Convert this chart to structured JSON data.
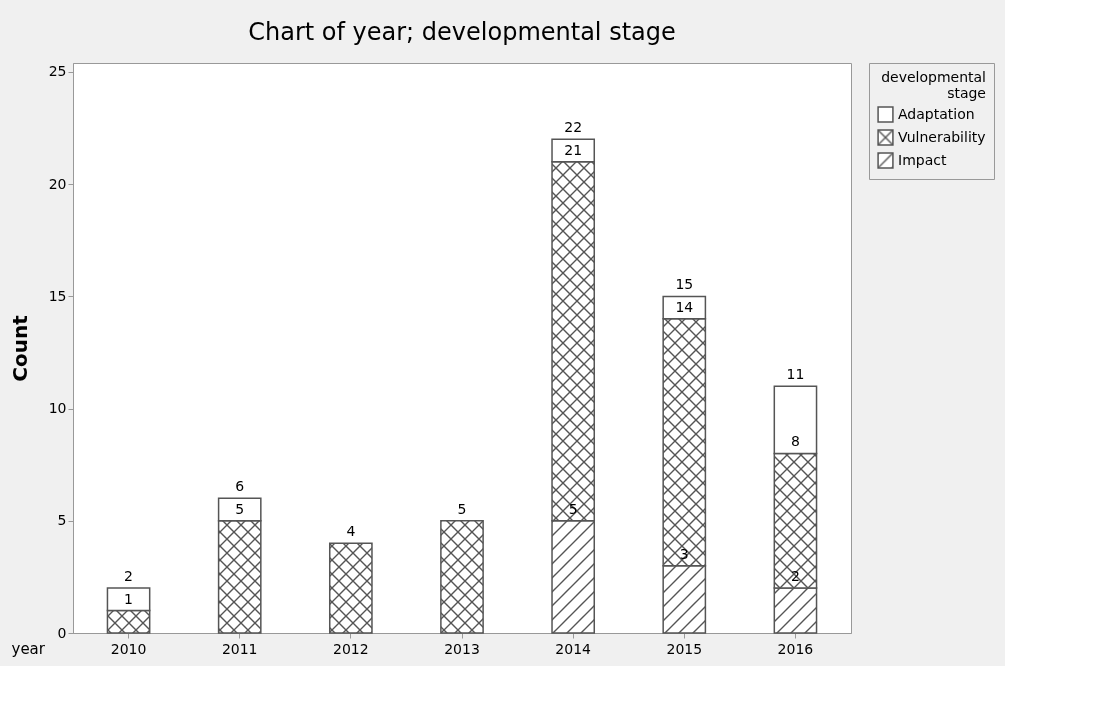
{
  "chart_data": {
    "type": "bar",
    "title": "Chart of year; developmental stage",
    "xlabel": "year",
    "ylabel": "Count",
    "legend_title": "developmental stage",
    "categories": [
      "2010",
      "2011",
      "2012",
      "2013",
      "2014",
      "2015",
      "2016"
    ],
    "stacked": true,
    "ylim": [
      0,
      25.4
    ],
    "yticks": [
      0,
      5,
      10,
      15,
      20,
      25
    ],
    "grid": false,
    "legend": "top right",
    "series": [
      {
        "name": "Impact",
        "color": "#555555",
        "values": [
          0,
          0,
          0,
          0,
          5,
          3,
          2
        ]
      },
      {
        "name": "Vulnerability",
        "color": "#555555",
        "values": [
          1,
          5,
          4,
          5,
          16,
          11,
          6
        ]
      },
      {
        "name": "Adaptation",
        "color": "#555555",
        "values": [
          1,
          1,
          0,
          0,
          1,
          1,
          3
        ]
      }
    ],
    "annotations": [
      {
        "text": "1",
        "x": "2010",
        "y": 1
      },
      {
        "text": "2",
        "x": "2010",
        "y": 2
      },
      {
        "text": "5",
        "x": "2011",
        "y": 5
      },
      {
        "text": "6",
        "x": "2011",
        "y": 6
      },
      {
        "text": "4",
        "x": "2012",
        "y": 4
      },
      {
        "text": "5",
        "x": "2013",
        "y": 5
      },
      {
        "text": "5",
        "x": "2014",
        "y": 5
      },
      {
        "text": "21",
        "x": "2014",
        "y": 21
      },
      {
        "text": "22",
        "x": "2014",
        "y": 22
      },
      {
        "text": "3",
        "x": "2015",
        "y": 3
      },
      {
        "text": "14",
        "x": "2015",
        "y": 14
      },
      {
        "text": "15",
        "x": "2015",
        "y": 15
      },
      {
        "text": "2",
        "x": "2016",
        "y": 2
      },
      {
        "text": "8",
        "x": "2016",
        "y": 8
      },
      {
        "text": "11",
        "x": "2016",
        "y": 11
      }
    ]
  }
}
